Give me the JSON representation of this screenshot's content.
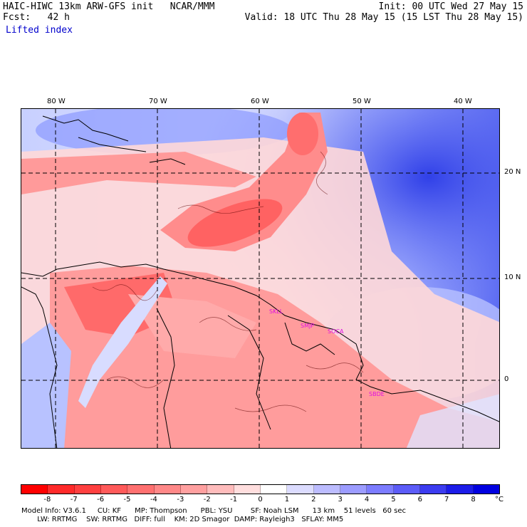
{
  "header": {
    "model_title": "HAIC-HIWC 13km ARW-GFS init   NCAR/MMM",
    "forecast": "Fcst:   42 h",
    "field": "Lifted index",
    "init": "Init: 00 UTC Wed 27 May 15",
    "valid": "Valid: 18 UTC Thu 28 May 15 (15 LST Thu 28 May 15)"
  },
  "map": {
    "lon_labels": [
      "80 W",
      "70 W",
      "60 W",
      "50 W",
      "40 W"
    ],
    "lat_labels": [
      "20 N",
      "10 N",
      "0"
    ],
    "stations": [
      "SKLL",
      "SMJP",
      "SOCA",
      "SBDE"
    ]
  },
  "colorbar": {
    "labels": [
      "-8",
      "-7",
      "-6",
      "-5",
      "-4",
      "-3",
      "-2",
      "-1",
      "0",
      "1",
      "2",
      "3",
      "4",
      "5",
      "6",
      "7",
      "8"
    ],
    "unit": "°C",
    "colors": [
      "#ff0000",
      "#ff2a2a",
      "#ff4040",
      "#ff5a5a",
      "#ff7070",
      "#ff8888",
      "#ffa0a0",
      "#ffbcbc",
      "#ffdede",
      "#ffffff",
      "#dcdcff",
      "#bcbcff",
      "#9c9cff",
      "#7c7cff",
      "#5c5cf8",
      "#3c3cf0",
      "#1c1ce8",
      "#0000e0"
    ]
  },
  "footer": {
    "line1": "Model Info: V3.6.1     CU: KF      MP: Thompson      PBL: YSU        SF: Noah LSM      13 km    51 levels   60 sec",
    "line2": "       LW: RRTMG    SW: RRTMG   DIFF: full    KM: 2D Smagor  DAMP: Rayleigh3   SFLAY: MM5"
  }
}
